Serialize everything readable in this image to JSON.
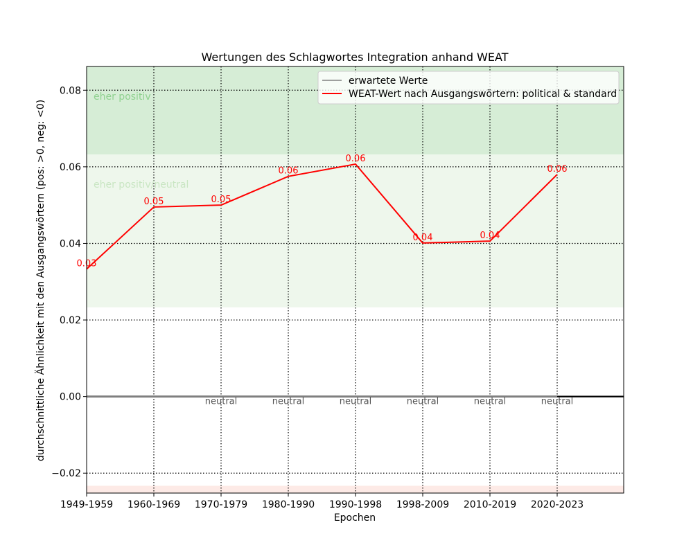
{
  "chart_data": {
    "type": "line",
    "title": "Wertungen des Schlagwortes Integration anhand WEAT",
    "xlabel": "Epochen",
    "ylabel": "durchschnittliche Ähnlichkeit mit den Ausgangswörtern (pos: >0, neg: <0)",
    "categories": [
      "1949-1959",
      "1960-1969",
      "1970-1979",
      "1980-1990",
      "1990-1998",
      "1998-2009",
      "2010-2019",
      "2020-2023"
    ],
    "ylim": [
      -0.0252,
      0.0862
    ],
    "yticks": [
      -0.02,
      0.0,
      0.02,
      0.04,
      0.06,
      0.08
    ],
    "ytick_labels": [
      "−0.02",
      "0.00",
      "0.02",
      "0.04",
      "0.06",
      "0.08"
    ],
    "grid": true,
    "legend_position": "top-right",
    "legend": [
      "erwartete Werte",
      "WEAT-Wert nach Ausgangswörtern: political & standard"
    ],
    "series": [
      {
        "name": "erwartete Werte",
        "color": "#808080",
        "values": [
          0.0,
          0.0,
          0.0,
          0.0,
          0.0,
          0.0,
          0.0,
          0.0
        ]
      },
      {
        "name": "WEAT-Wert nach Ausgangswörtern: political & standard",
        "color": "#ff0000",
        "values": [
          0.0333,
          0.0495,
          0.05,
          0.0575,
          0.0607,
          0.0401,
          0.0406,
          0.058
        ],
        "point_labels": [
          "0.03",
          "0.05",
          "0.05",
          "0.06",
          "0.06",
          "0.04",
          "0.04",
          "0.06"
        ]
      }
    ],
    "bands": [
      {
        "label": "eher positiv",
        "from": 0.0632,
        "to": 0.0862,
        "color": "#d6edd6",
        "label_color": "#8fd18f"
      },
      {
        "label": "eher positiv/neutral",
        "from": 0.0233,
        "to": 0.0632,
        "color": "#eef7ec",
        "label_color": "#c9e6c3"
      },
      {
        "label": "",
        "from": -0.0252,
        "to": -0.0233,
        "color": "#fdeae6",
        "label_color": "#f0b4a8"
      }
    ],
    "neutral_labels": [
      "",
      "",
      "neutral",
      "neutral",
      "neutral",
      "neutral",
      "neutral",
      "neutral"
    ],
    "zero_line_color": "#000000"
  }
}
